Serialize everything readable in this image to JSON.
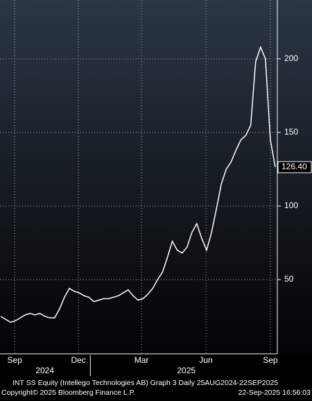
{
  "chart_data": {
    "type": "line",
    "footer_title": "INT SS Equity (Intellego Technologies AB) Graph 3  Daily 25AUG2024-22SEP2025",
    "copyright": "Copyright© 2025 Bloomberg Finance L.P.",
    "timestamp": "22-Sep-2025 16:56:03",
    "x": [
      "2024-08-26",
      "2024-09-02",
      "2024-09-09",
      "2024-09-16",
      "2024-09-23",
      "2024-09-30",
      "2024-10-07",
      "2024-10-14",
      "2024-10-21",
      "2024-10-28",
      "2024-11-04",
      "2024-11-11",
      "2024-11-18",
      "2024-11-25",
      "2024-12-02",
      "2024-12-09",
      "2024-12-16",
      "2024-12-23",
      "2024-12-30",
      "2025-01-06",
      "2025-01-13",
      "2025-01-20",
      "2025-01-27",
      "2025-02-03",
      "2025-02-10",
      "2025-02-17",
      "2025-02-24",
      "2025-03-03",
      "2025-03-10",
      "2025-03-17",
      "2025-03-24",
      "2025-03-31",
      "2025-04-07",
      "2025-04-14",
      "2025-04-21",
      "2025-04-28",
      "2025-05-05",
      "2025-05-12",
      "2025-05-19",
      "2025-05-26",
      "2025-06-02",
      "2025-06-09",
      "2025-06-16",
      "2025-06-23",
      "2025-06-30",
      "2025-07-07",
      "2025-07-14",
      "2025-07-21",
      "2025-07-28",
      "2025-08-04",
      "2025-08-11",
      "2025-08-18",
      "2025-08-25",
      "2025-09-01",
      "2025-09-08",
      "2025-09-15",
      "2025-09-22"
    ],
    "series": [
      {
        "name": "INT SS Equity",
        "color": "#ffffff",
        "values": [
          25,
          23,
          21,
          22,
          24,
          26,
          27,
          26,
          27,
          25,
          24,
          24,
          30,
          38,
          44,
          42,
          41,
          39,
          38,
          35,
          36,
          37,
          37,
          38,
          39,
          41,
          43,
          39,
          36,
          37,
          40,
          44,
          50,
          55,
          65,
          76,
          70,
          68,
          72,
          82,
          88,
          78,
          70,
          82,
          98,
          115,
          125,
          130,
          138,
          145,
          148,
          155,
          198,
          208,
          200,
          145,
          126.4
        ],
        "last_value_label": "126.40"
      }
    ],
    "xlim": [
      "2024-08-25",
      "2025-09-23"
    ],
    "xticks": [
      {
        "value": "2024-09-15",
        "label": "Sep"
      },
      {
        "value": "2024-12-15",
        "label": "Dec"
      },
      {
        "value": "2025-03-15",
        "label": "Mar"
      },
      {
        "value": "2025-06-15",
        "label": "Jun"
      },
      {
        "value": "2025-09-15",
        "label": "Sep"
      }
    ],
    "year_labels": [
      {
        "value": "2024-10-28",
        "label": "2024"
      },
      {
        "value": "2025-05-18",
        "label": "2025"
      }
    ],
    "year_breaks": [
      "2025-01-01"
    ],
    "ylim": [
      0,
      240
    ],
    "yticks": [
      50,
      100,
      150,
      200
    ],
    "grid": true
  }
}
